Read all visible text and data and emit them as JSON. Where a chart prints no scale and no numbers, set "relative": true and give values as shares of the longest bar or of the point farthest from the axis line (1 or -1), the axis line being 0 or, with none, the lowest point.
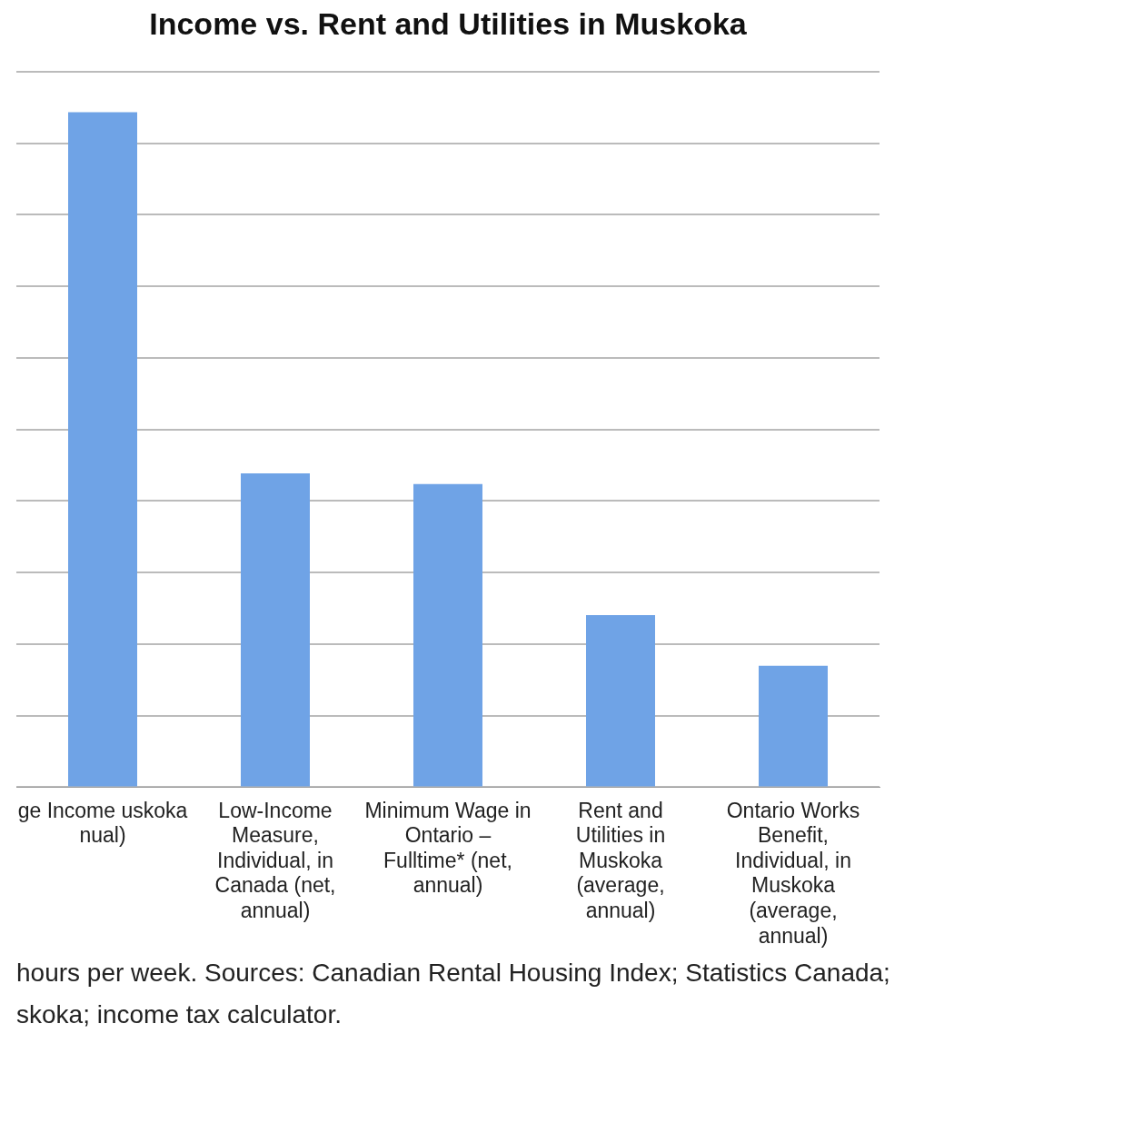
{
  "chart_data": {
    "type": "bar",
    "title": "Income vs. Rent and Utilities in Muskoka",
    "categories": [
      "ge Income uskoka nual)",
      "Low-Income Measure, Individual, in Canada (net, annual)",
      "Minimum Wage in Ontario – Fulltime* (net, annual)",
      "Rent and Utilities in Muskoka (average, annual)",
      "Ontario Works Benefit, Individual, in Muskoka (average, annual)"
    ],
    "values": [
      1,
      0.465,
      0.449,
      0.255,
      0.18
    ],
    "color": "#6fa3e6",
    "relative": true,
    "grid": "y",
    "legend": false,
    "annotations": [
      "hours per week. Sources: Canadian Rental Housing Index; Statistics Canada;",
      "skoka; income tax calculator."
    ]
  }
}
